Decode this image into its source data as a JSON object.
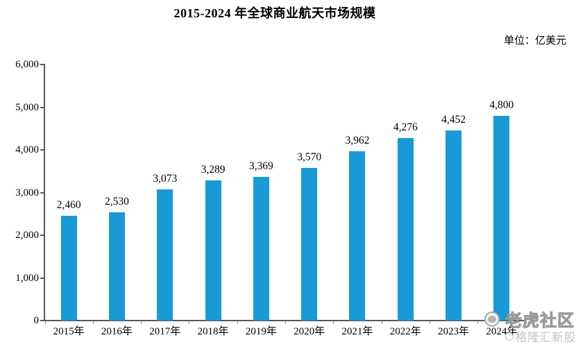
{
  "page": {
    "background": "#ffffff"
  },
  "header": {
    "title": "2015-2024 年全球商业航天市场规模",
    "unit_label": "单位：亿美元"
  },
  "chart_data": {
    "type": "bar",
    "title": "2015-2024 年全球商业航天市场规模",
    "categories": [
      "2015年",
      "2016年",
      "2017年",
      "2018年",
      "2019年",
      "2020年",
      "2021年",
      "2022年",
      "2023年",
      "2024年"
    ],
    "values": [
      2460,
      2530,
      3073,
      3289,
      3369,
      3570,
      3962,
      4276,
      4452,
      4800
    ],
    "value_labels": [
      "2,460",
      "2,530",
      "3,073",
      "3,289",
      "3,369",
      "3,570",
      "3,962",
      "4,276",
      "4,452",
      "4,800"
    ],
    "xlabel": "",
    "ylabel": "",
    "ylim": [
      0,
      6000
    ],
    "ytick_step": 1000,
    "ytick_labels": [
      "0",
      "1,000",
      "2,000",
      "3,000",
      "4,000",
      "5,000",
      "6,000"
    ],
    "grid": false,
    "legend_position": "none",
    "bar_color": "#189AD6",
    "axis_color": "#595959"
  },
  "watermarks": {
    "tiger_community": {
      "icon": "tiger-logo-icon",
      "label": "老虎社区"
    },
    "gelonghui": {
      "icon": "gelonghui-logo-icon",
      "label": "格隆汇新股"
    }
  }
}
